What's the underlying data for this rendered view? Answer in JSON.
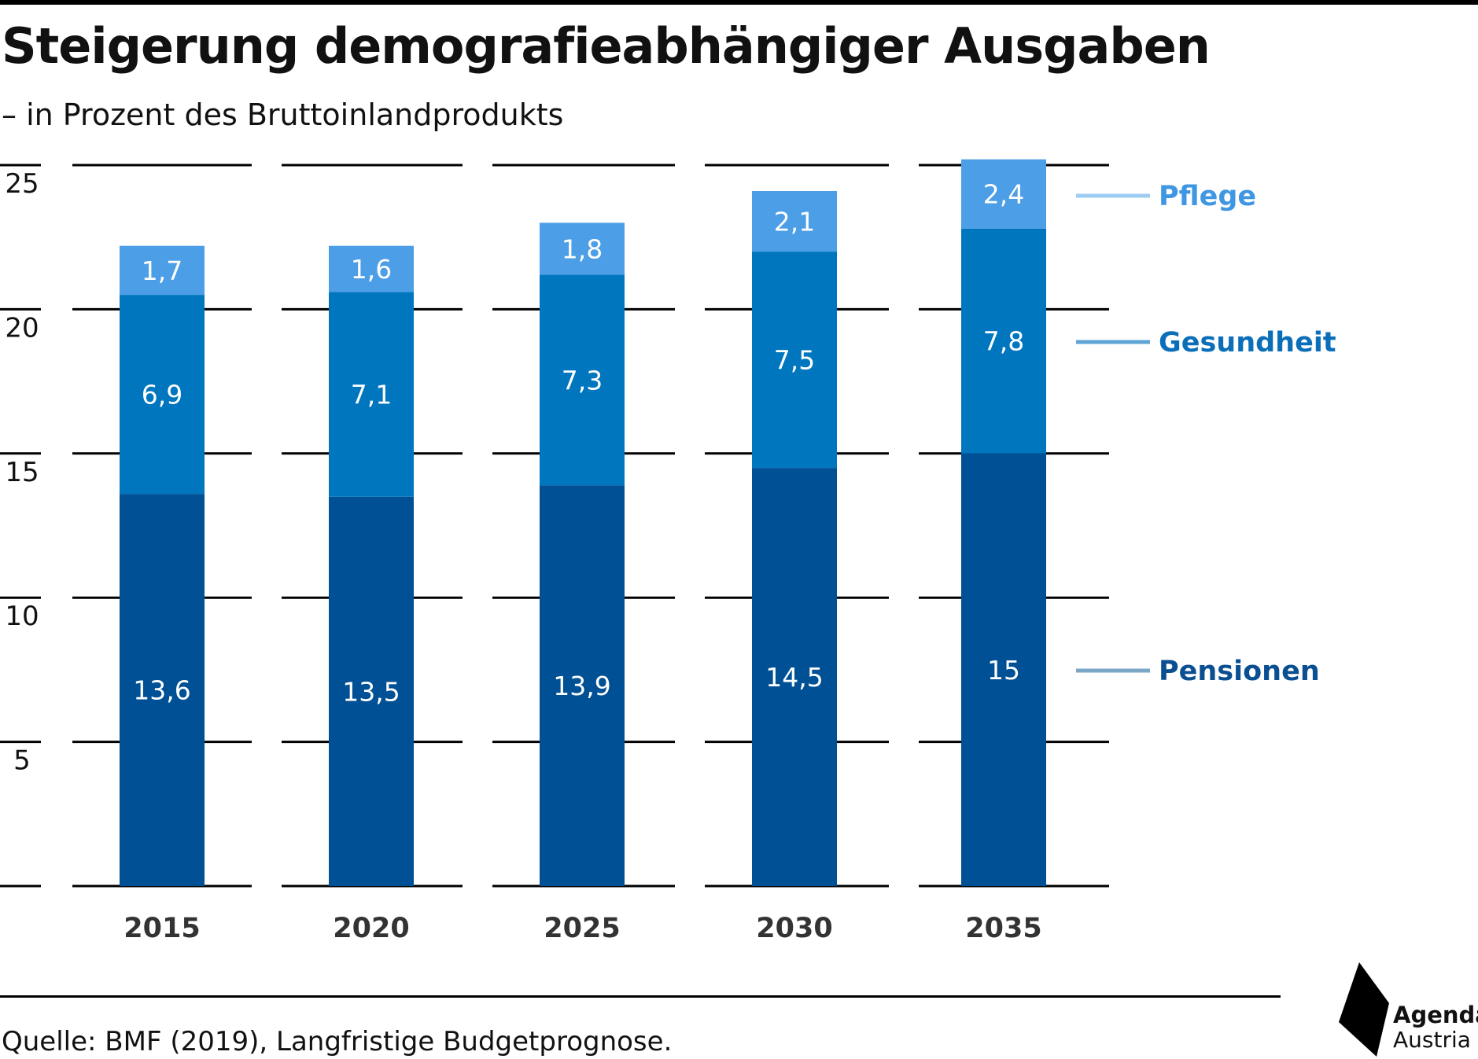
{
  "header": {
    "title": "Steigerung demografieabhängiger Ausgaben",
    "subtitle": "– in Prozent des Bruttoinlandprodukts"
  },
  "footer": {
    "source": "Quelle: BMF (2019), Langfristige Budgetprognose."
  },
  "logo": {
    "line1": "Agenda",
    "line2": "Austria"
  },
  "colors": {
    "pensionen": "#005095",
    "gesundheit": "#0076bf",
    "pflege": "#4c9ee6",
    "legend_pensionen": "#7aa6c8",
    "legend_gesundheit": "#5fa4d6",
    "legend_pflege": "#9ecdf3",
    "label_pensionen": "#0a4f92",
    "label_gesundheit": "#0a6fb8",
    "label_pflege": "#3f97e3"
  },
  "chart_data": {
    "type": "bar",
    "stacked": true,
    "categories": [
      "2015",
      "2020",
      "2025",
      "2030",
      "2035"
    ],
    "series": [
      {
        "name": "Pensionen",
        "values": [
          13.6,
          13.5,
          13.9,
          14.5,
          15
        ],
        "labels": [
          "13,6",
          "13,5",
          "13,9",
          "14,5",
          "15"
        ]
      },
      {
        "name": "Gesundheit",
        "values": [
          6.9,
          7.1,
          7.3,
          7.5,
          7.8
        ],
        "labels": [
          "6,9",
          "7,1",
          "7,3",
          "7,5",
          "7,8"
        ]
      },
      {
        "name": "Pflege",
        "values": [
          1.7,
          1.6,
          1.8,
          2.1,
          2.4
        ],
        "labels": [
          "1,7",
          "1,6",
          "1,8",
          "2,1",
          "2,4"
        ]
      }
    ],
    "yticks": [
      5,
      10,
      15,
      20,
      25
    ],
    "ytick_labels": [
      "5",
      "10",
      "15",
      "20",
      "25"
    ],
    "ylim": [
      0,
      25
    ],
    "grid": true,
    "legend_position": "right"
  }
}
